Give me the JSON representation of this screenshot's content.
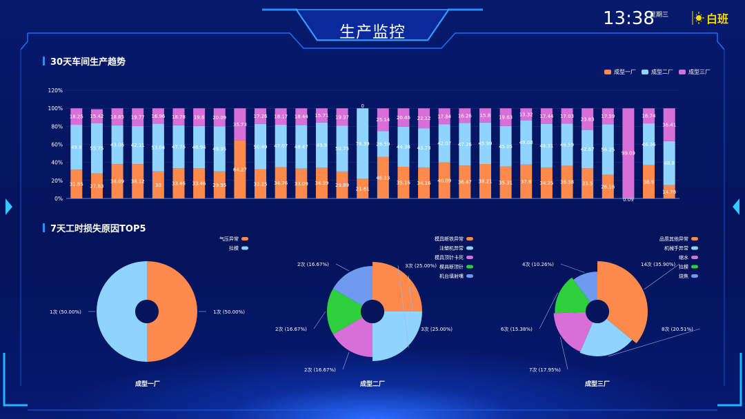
{
  "header": {
    "title": "生产监控",
    "time": "13:38",
    "weekday": "星期三",
    "shift": "白班"
  },
  "colors": {
    "factory1": "#ff8a4c",
    "factory2": "#8fd3ff",
    "factory3": "#d86fd8",
    "green": "#2dcf3c",
    "blue2": "#6e9bf0",
    "accent": "#1b8cff",
    "shift": "#ffd900"
  },
  "section1": {
    "title": "30天车间生产趋势"
  },
  "section2": {
    "title": "7天工时损失原因TOP5"
  },
  "chart_data": [
    {
      "type": "bar",
      "stacked": true,
      "ylim": [
        0,
        120
      ],
      "yticks": [
        "0%",
        "20%",
        "40%",
        "60%",
        "80%",
        "100%",
        "120%"
      ],
      "legend_position": "top-right",
      "series": [
        {
          "name": "成型一厂",
          "values": [
            31.95,
            27.83,
            38.09,
            38.12,
            30,
            33.46,
            33.46,
            29.95,
            64.27,
            32.25,
            34.76,
            33.09,
            34.39,
            29.89,
            21.61,
            46.23,
            35.16,
            34.16,
            40.09,
            36.47,
            38.21,
            35.31,
            37.6,
            34.25,
            36.38,
            33.5,
            26.16,
            0.09,
            36.9,
            14.78
          ]
        },
        {
          "name": "成型二厂",
          "values": [
            49.8,
            55.75,
            43.06,
            42.11,
            53.04,
            47.76,
            46.94,
            49.95,
            0,
            50.49,
            47.07,
            48.47,
            49.9,
            50.75,
            78.39,
            28.59,
            44.38,
            43.73,
            42.07,
            47.26,
            45.99,
            45.05,
            49.08,
            48.31,
            46.59,
            42.67,
            56.25,
            0.82,
            46.36,
            48.8
          ]
        },
        {
          "name": "成型三厂",
          "values": [
            18.25,
            15.42,
            18.85,
            19.77,
            16.96,
            18.78,
            19.6,
            20.09,
            35.73,
            17.26,
            18.17,
            18.44,
            15.71,
            19.37,
            0,
            25.14,
            20.46,
            22.12,
            17.84,
            16.26,
            15.8,
            19.63,
            13.32,
            17.44,
            17.03,
            23.83,
            17.59,
            99.09,
            16.74,
            36.41
          ]
        }
      ],
      "labels_shown": {
        "s1": [
          "31.95",
          "27.83",
          "38.09",
          "38.12",
          "30",
          "33.46",
          "33.46",
          "29.95",
          "64.27",
          "32.25",
          "34.76",
          "33.09",
          "34.39",
          "29.89",
          "21.61",
          "46.23",
          "35.16",
          "34.16",
          "40.09",
          "36.47",
          "38.21",
          "35.31",
          "37.6",
          "34.25",
          "36.38",
          "33.5",
          "26.16",
          "0.09",
          "36.9",
          "14.78"
        ],
        "s2": [
          "49.8",
          "55.75",
          "43.06",
          "42.11",
          "53.04",
          "47.76",
          "46.94",
          "49.95",
          "0",
          "50.49",
          "47.07",
          "48.47",
          "49.9",
          "50.75",
          "78.39",
          "28.59",
          "44.38",
          "43.73",
          "42.07",
          "47.26",
          "45.99",
          "45.05",
          "49.08",
          "48.31",
          "46.59",
          "42.67",
          "56.25",
          "",
          "46.36",
          "48.8"
        ],
        "s3": [
          "18.25",
          "15.42",
          "18.85",
          "19.77",
          "16.96",
          "18.78",
          "19.6",
          "20.09",
          "35.73",
          "17.26",
          "18.17",
          "18.44",
          "15.71",
          "19.37",
          "0",
          "25.14",
          "20.46",
          "22.12",
          "17.84",
          "16.26",
          "15.8",
          "19.63",
          "13.32",
          "17.44",
          "17.03",
          "23.83",
          "17.59",
          "99.09",
          "16.74",
          "36.41"
        ]
      }
    },
    {
      "type": "pie",
      "title": "成型一厂",
      "legend": [
        "气压异常",
        "拉模"
      ],
      "slices": [
        {
          "name": "气压异常",
          "value": 1,
          "label": "1次 (50.00%)"
        },
        {
          "name": "拉模",
          "value": 1,
          "label": "1次 (50.00%)"
        }
      ]
    },
    {
      "type": "pie",
      "title": "成型二厂",
      "legend": [
        "模具断铁异常",
        "注塑机异常",
        "模具顶针卡死",
        "模具断顶针",
        "机台填射嘴"
      ],
      "slices": [
        {
          "name": "模具断铁异常",
          "value": 3,
          "label": "3次 (25.00%)"
        },
        {
          "name": "注塑机异常",
          "value": 3,
          "label": "3次 (25.00%)"
        },
        {
          "name": "模具顶针卡死",
          "value": 2,
          "label": "2次 (16.67%)"
        },
        {
          "name": "模具断顶针",
          "value": 2,
          "label": "2次 (16.67%)"
        },
        {
          "name": "机台填射嘴",
          "value": 2,
          "label": "2次 (16.67%)"
        }
      ]
    },
    {
      "type": "pie",
      "title": "成型三厂",
      "legend": [
        "品质其他异常",
        "机械手异常",
        "缩水",
        "拉模",
        "烧焦"
      ],
      "slices": [
        {
          "name": "品质其他异常",
          "value": 14,
          "label": "14次 (35.90%)"
        },
        {
          "name": "机械手异常",
          "value": 8,
          "label": "8次 (20.51%)"
        },
        {
          "name": "缩水",
          "value": 7,
          "label": "7次 (17.95%)"
        },
        {
          "name": "拉模",
          "value": 6,
          "label": "6次 (15.38%)"
        },
        {
          "name": "烧焦",
          "value": 4,
          "label": "4次 (10.26%)"
        }
      ]
    }
  ]
}
